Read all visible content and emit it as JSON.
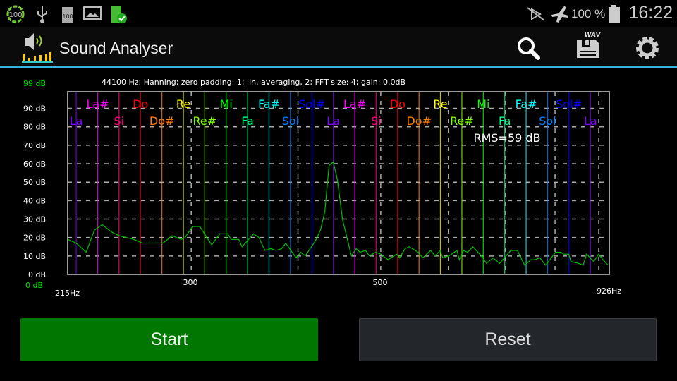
{
  "status_bar": {
    "battery_percent": "100 %",
    "time": "16:22",
    "icons": [
      "battery-100-circle-icon",
      "usb-icon",
      "sd-card-100-icon",
      "image-icon",
      "battery-charged-icon",
      "vibrate-off-icon",
      "airplane-mode-icon",
      "battery-icon"
    ]
  },
  "action_bar": {
    "title": "Sound Analyser",
    "app_icon": "sound-analyser-logo",
    "actions": [
      "search-icon",
      "save-wav-icon",
      "settings-icon"
    ],
    "wav_label": "WAV",
    "accent": "#33b5e5"
  },
  "plot": {
    "info": "44100 Hz; Hanning; zero padding: 1; lin. averaging, 2; FFT size: 4; gain: 0.0dB",
    "max_label": "99 dB",
    "min_label": "0 dB",
    "rms": "RMS=59 dB",
    "x_start": "215Hz",
    "x_end": "926Hz",
    "x_ticks": [
      "300",
      "500"
    ],
    "y_ticks": [
      "0 dB",
      "10 dB",
      "20 dB",
      "30 dB",
      "40 dB",
      "50 dB",
      "60 dB",
      "70 dB",
      "80 dB",
      "90 dB"
    ],
    "chart_data": {
      "type": "line",
      "x_scale": "log",
      "xlim": [
        215,
        926
      ],
      "ylim": [
        0,
        99
      ],
      "grid": true,
      "x_grid_hz": [
        300,
        400,
        500,
        600,
        700,
        800,
        900
      ],
      "notes": [
        {
          "name": "La",
          "hz": 220,
          "color": "#8000ff"
        },
        {
          "name": "La#",
          "hz": 233.1,
          "color": "#ff00ff"
        },
        {
          "name": "Si",
          "hz": 246.9,
          "color": "#ff0080"
        },
        {
          "name": "Do",
          "hz": 261.6,
          "color": "#ff0000"
        },
        {
          "name": "Do#",
          "hz": 277.2,
          "color": "#ff8000"
        },
        {
          "name": "Re",
          "hz": 293.7,
          "color": "#ffff00"
        },
        {
          "name": "Re#",
          "hz": 311.1,
          "color": "#80ff00"
        },
        {
          "name": "Mi",
          "hz": 329.6,
          "color": "#00ff00"
        },
        {
          "name": "Fa",
          "hz": 349.2,
          "color": "#00ff80"
        },
        {
          "name": "Fa#",
          "hz": 370,
          "color": "#00ffff"
        },
        {
          "name": "Sol",
          "hz": 392,
          "color": "#0080ff"
        },
        {
          "name": "Sol#",
          "hz": 415.3,
          "color": "#0000ff"
        },
        {
          "name": "La",
          "hz": 440,
          "color": "#8000ff"
        },
        {
          "name": "La#",
          "hz": 466.2,
          "color": "#ff00ff"
        },
        {
          "name": "Si",
          "hz": 493.9,
          "color": "#ff0080"
        },
        {
          "name": "Do",
          "hz": 523.3,
          "color": "#ff0000"
        },
        {
          "name": "Do#",
          "hz": 554.4,
          "color": "#ff8000"
        },
        {
          "name": "Re",
          "hz": 587.3,
          "color": "#ffff00"
        },
        {
          "name": "Re#",
          "hz": 622.3,
          "color": "#80ff00"
        },
        {
          "name": "Mi",
          "hz": 659.3,
          "color": "#00ff00"
        },
        {
          "name": "Fa",
          "hz": 698.5,
          "color": "#00ff80"
        },
        {
          "name": "Fa#",
          "hz": 740,
          "color": "#00ffff"
        },
        {
          "name": "Sol",
          "hz": 784,
          "color": "#0080ff"
        },
        {
          "name": "Sol#",
          "hz": 830.6,
          "color": "#0000ff"
        },
        {
          "name": "La",
          "hz": 880,
          "color": "#8000ff"
        }
      ],
      "series": [
        {
          "color": "#00c000",
          "points": [
            [
              215,
              19
            ],
            [
              220,
              17
            ],
            [
              226,
              12
            ],
            [
              231,
              24
            ],
            [
              236,
              27
            ],
            [
              242,
              23
            ],
            [
              247,
              21
            ],
            [
              257,
              19
            ],
            [
              263,
              17
            ],
            [
              278,
              17
            ],
            [
              285,
              21
            ],
            [
              292,
              19
            ],
            [
              295,
              20
            ],
            [
              301,
              26
            ],
            [
              307,
              26
            ],
            [
              317,
              16
            ],
            [
              324,
              22
            ],
            [
              331,
              22
            ],
            [
              334,
              19
            ],
            [
              341,
              19
            ],
            [
              344,
              15
            ],
            [
              355,
              22
            ],
            [
              360,
              20
            ],
            [
              366,
              13
            ],
            [
              372,
              14
            ],
            [
              377,
              13
            ],
            [
              383,
              14
            ],
            [
              387,
              17
            ],
            [
              398,
              9
            ],
            [
              403,
              12
            ],
            [
              408,
              10
            ],
            [
              419,
              18
            ],
            [
              425,
              24
            ],
            [
              430,
              34
            ],
            [
              435,
              59
            ],
            [
              440,
              61
            ],
            [
              445,
              51
            ],
            [
              451,
              30
            ],
            [
              462,
              10
            ],
            [
              468,
              14
            ],
            [
              473,
              12
            ],
            [
              480,
              13
            ],
            [
              485,
              10
            ],
            [
              493,
              12
            ],
            [
              500,
              11
            ],
            [
              510,
              8
            ],
            [
              522,
              11
            ],
            [
              526,
              9
            ],
            [
              534,
              14
            ],
            [
              540,
              15
            ],
            [
              553,
              12
            ],
            [
              560,
              9
            ],
            [
              566,
              11
            ],
            [
              572,
              13
            ],
            [
              579,
              10
            ],
            [
              587,
              13
            ],
            [
              591,
              9
            ],
            [
              601,
              10
            ],
            [
              614,
              13
            ],
            [
              618,
              8
            ],
            [
              625,
              13
            ],
            [
              632,
              12
            ],
            [
              641,
              15
            ],
            [
              656,
              10
            ],
            [
              665,
              6
            ],
            [
              677,
              9
            ],
            [
              689,
              6
            ],
            [
              710,
              13
            ],
            [
              723,
              13
            ],
            [
              737,
              5
            ],
            [
              750,
              8
            ],
            [
              758,
              8
            ],
            [
              768,
              9
            ],
            [
              780,
              5
            ],
            [
              792,
              9
            ],
            [
              801,
              12
            ],
            [
              813,
              12
            ],
            [
              818,
              11
            ],
            [
              830,
              11
            ],
            [
              835,
              7
            ],
            [
              853,
              6
            ],
            [
              863,
              5
            ],
            [
              871,
              11
            ],
            [
              888,
              7
            ],
            [
              900,
              11
            ],
            [
              910,
              8
            ],
            [
              923,
              5
            ]
          ]
        }
      ]
    }
  },
  "buttons": {
    "start": "Start",
    "reset": "Reset"
  }
}
